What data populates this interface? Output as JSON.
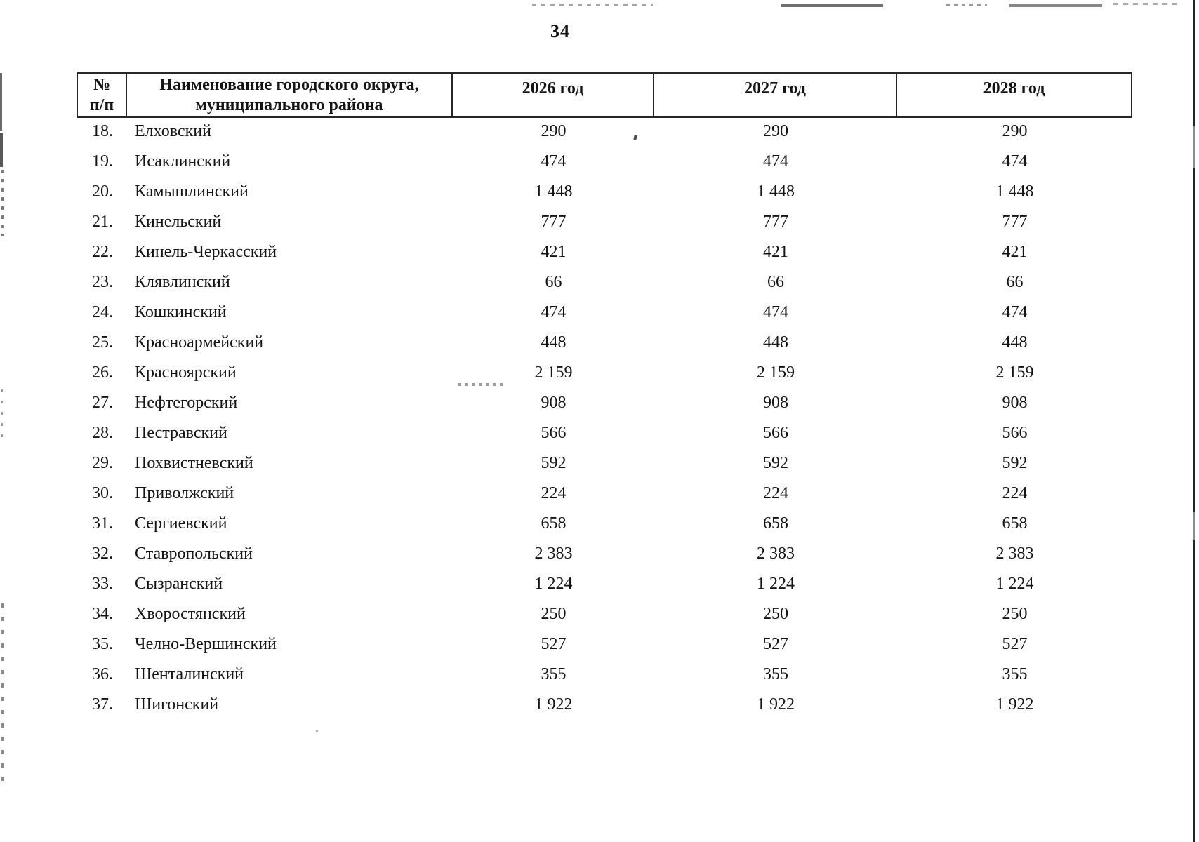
{
  "page": {
    "number": "34"
  },
  "table": {
    "header": {
      "num_top": "№",
      "num_bottom": "п/п",
      "name_line1": "Наименование городского округа,",
      "name_line2": "муниципального района",
      "year1": "2026 год",
      "year2": "2027 год",
      "year3": "2028 год"
    },
    "rows": [
      {
        "num": "18.",
        "name": "Елховский",
        "y2026": "290",
        "y2027": "290",
        "y2028": "290"
      },
      {
        "num": "19.",
        "name": "Исаклинский",
        "y2026": "474",
        "y2027": "474",
        "y2028": "474"
      },
      {
        "num": "20.",
        "name": "Камышлинский",
        "y2026": "1 448",
        "y2027": "1 448",
        "y2028": "1 448"
      },
      {
        "num": "21.",
        "name": "Кинельский",
        "y2026": "777",
        "y2027": "777",
        "y2028": "777"
      },
      {
        "num": "22.",
        "name": "Кинель-Черкасский",
        "y2026": "421",
        "y2027": "421",
        "y2028": "421"
      },
      {
        "num": "23.",
        "name": "Клявлинский",
        "y2026": "66",
        "y2027": "66",
        "y2028": "66"
      },
      {
        "num": "24.",
        "name": "Кошкинский",
        "y2026": "474",
        "y2027": "474",
        "y2028": "474"
      },
      {
        "num": "25.",
        "name": "Красноармейский",
        "y2026": "448",
        "y2027": "448",
        "y2028": "448"
      },
      {
        "num": "26.",
        "name": "Красноярский",
        "y2026": "2 159",
        "y2027": "2 159",
        "y2028": "2 159"
      },
      {
        "num": "27.",
        "name": "Нефтегорский",
        "y2026": "908",
        "y2027": "908",
        "y2028": "908"
      },
      {
        "num": "28.",
        "name": "Пестравский",
        "y2026": "566",
        "y2027": "566",
        "y2028": "566"
      },
      {
        "num": "29.",
        "name": "Похвистневский",
        "y2026": "592",
        "y2027": "592",
        "y2028": "592"
      },
      {
        "num": "30.",
        "name": "Приволжский",
        "y2026": "224",
        "y2027": "224",
        "y2028": "224"
      },
      {
        "num": "31.",
        "name": "Сергиевский",
        "y2026": "658",
        "y2027": "658",
        "y2028": "658"
      },
      {
        "num": "32.",
        "name": "Ставропольский",
        "y2026": "2 383",
        "y2027": "2 383",
        "y2028": "2 383"
      },
      {
        "num": "33.",
        "name": "Сызранский",
        "y2026": "1 224",
        "y2027": "1 224",
        "y2028": "1 224"
      },
      {
        "num": "34.",
        "name": "Хворостянский",
        "y2026": "250",
        "y2027": "250",
        "y2028": "250"
      },
      {
        "num": "35.",
        "name": "Челно-Вершинский",
        "y2026": "527",
        "y2027": "527",
        "y2028": "527"
      },
      {
        "num": "36.",
        "name": "Шенталинский",
        "y2026": "355",
        "y2027": "355",
        "y2028": "355"
      },
      {
        "num": "37.",
        "name": "Шигонский",
        "y2026": "1 922",
        "y2027": "1 922",
        "y2028": "1 922"
      }
    ]
  },
  "colors": {
    "text": "#141414",
    "table_border": "#262626",
    "artifact_gray": "#8a8a8a"
  }
}
